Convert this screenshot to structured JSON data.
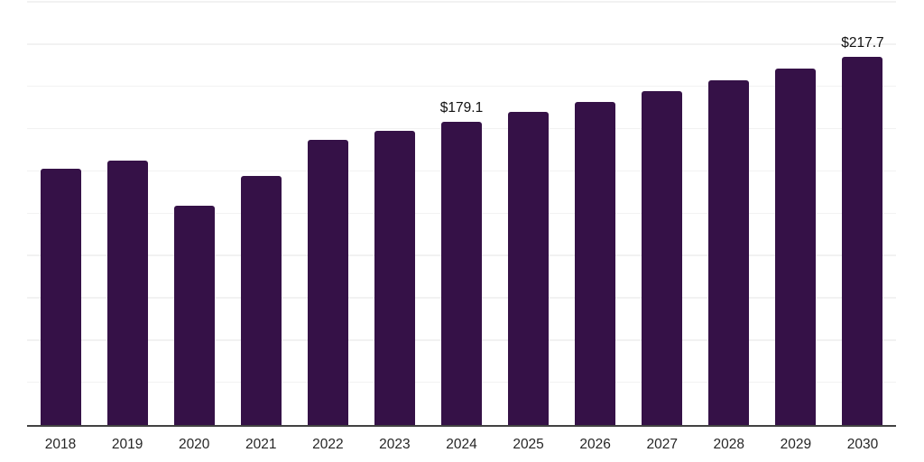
{
  "chart_style": {
    "background_color": "#ffffff",
    "bar_color": "#351147",
    "gridline_color": "#f2f2f2",
    "axis_line_color": "#424242",
    "tick_label_color": "#262626",
    "data_label_color": "#111111"
  },
  "chart_data": {
    "type": "bar",
    "title": "",
    "xlabel": "",
    "ylabel": "",
    "categories": [
      "2018",
      "2019",
      "2020",
      "2021",
      "2022",
      "2023",
      "2024",
      "2025",
      "2026",
      "2027",
      "2028",
      "2029",
      "2030"
    ],
    "values": [
      151.2,
      156.0,
      129.4,
      147.0,
      168.3,
      173.6,
      179.1,
      184.8,
      190.8,
      197.1,
      203.5,
      210.4,
      217.7
    ],
    "data_labels": [
      null,
      null,
      null,
      null,
      null,
      null,
      "$179.1",
      null,
      null,
      null,
      null,
      null,
      "$217.7"
    ],
    "ylim": [
      0,
      250
    ],
    "grid_step": 25,
    "grid": "on",
    "legend_position": "none",
    "currency_prefix": "$"
  }
}
